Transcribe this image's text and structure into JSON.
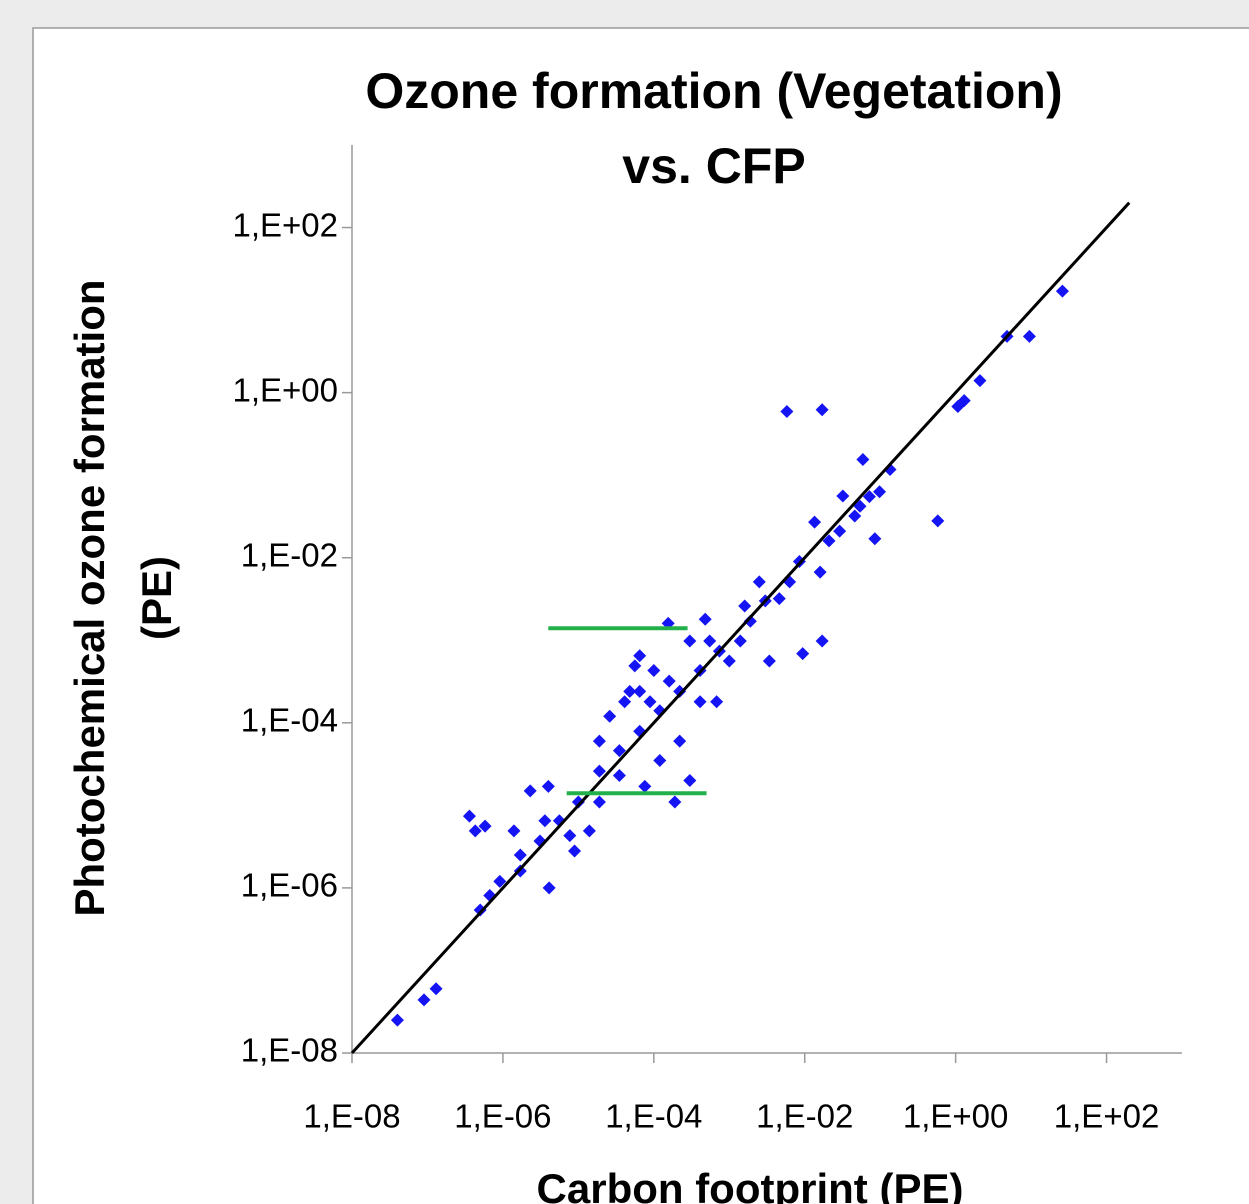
{
  "chart_data": {
    "type": "scatter",
    "title": [
      "Ozone formation (Vegetation)",
      "vs. CFP"
    ],
    "xlabel": "Carbon footprint (PE)",
    "ylabel": [
      "Photochemical ozone formation",
      "(PE)"
    ],
    "xscale": "log",
    "yscale": "log",
    "xlim": [
      1e-08,
      1000.0
    ],
    "ylim": [
      1e-08,
      1000.0
    ],
    "xticks": [
      {
        "value": 1e-08,
        "label": "1,E-08"
      },
      {
        "value": 1e-06,
        "label": "1,E-06"
      },
      {
        "value": 0.0001,
        "label": "1,E-04"
      },
      {
        "value": 0.01,
        "label": "1,E-02"
      },
      {
        "value": 1,
        "label": "1,E+00"
      },
      {
        "value": 100,
        "label": "1,E+02"
      }
    ],
    "yticks": [
      {
        "value": 1e-08,
        "label": "1,E-08"
      },
      {
        "value": 1e-06,
        "label": "1,E-06"
      },
      {
        "value": 0.0001,
        "label": "1,E-04"
      },
      {
        "value": 0.01,
        "label": "1,E-02"
      },
      {
        "value": 1,
        "label": "1,E+00"
      },
      {
        "value": 100,
        "label": "1,E+02"
      }
    ],
    "color": "#1414f5",
    "x": [
      4e-08,
      9e-08,
      1.3e-07,
      26,
      4.8,
      9.5,
      2.1,
      1.3,
      1.07,
      0.0058,
      0.017,
      0.059,
      0.135,
      0.58,
      0.085,
      0.032,
      0.017,
      0.0094,
      0.0034,
      4.1e-06,
      3.6e-07,
      4.3e-07,
      5.8e-07,
      0.000155,
      6.5e-05,
      0.00048,
      0.00068,
      0.0003,
      1.9e-05,
      4e-06,
      8.9e-06,
      1.7e-06,
      0.0025,
      0.0046,
      0.0085,
      0.016,
      0.0135,
      0.029,
      0.046,
      0.098,
      0.0016,
      0.0014,
      0.00074,
      0.00041,
      0.00022,
      0.00012,
      6.5e-05,
      3.5e-05,
      1.9e-05,
      1e-05,
      5.6e-06,
      3.1e-06,
      1.7e-06,
      9.1e-07,
      6.7e-07,
      5e-07,
      0.00016,
      8.9e-05,
      4.8e-05,
      0.00012,
      0.00022,
      0.00041,
      2.6e-05,
      3.5e-05,
      7.6e-05,
      0.0003,
      0.00055,
      0.001,
      0.0019,
      0.003,
      0.0063,
      0.021,
      0.054,
      0.072,
      1.9e-05,
      1.4e-05,
      7.7e-06,
      3.6e-06,
      2.3e-06,
      1.4e-06,
      4.1e-05,
      6.5e-05,
      0.0001,
      5.6e-05,
      0.00019
    ],
    "y": [
      2.5e-08,
      4.4e-08,
      6e-08,
      17,
      4.8,
      4.8,
      1.4,
      0.8,
      0.68,
      0.59,
      0.62,
      0.155,
      0.117,
      0.028,
      0.017,
      0.056,
      0.00098,
      0.00069,
      0.00056,
      1e-06,
      7.4e-06,
      4.9e-06,
      5.6e-06,
      0.0016,
      0.00065,
      0.0018,
      0.00018,
      2e-05,
      6e-05,
      1.7e-05,
      2.8e-06,
      1.6e-06,
      0.0051,
      0.0032,
      0.009,
      0.0067,
      0.027,
      0.021,
      0.032,
      0.063,
      0.0026,
      0.00098,
      0.00074,
      0.00043,
      0.00024,
      0.00014,
      7.9e-05,
      4.6e-05,
      2.6e-05,
      1.1e-05,
      6.5e-06,
      3.7e-06,
      2.5e-06,
      1.2e-06,
      8.1e-07,
      5.4e-07,
      0.00032,
      0.00018,
      0.00024,
      3.5e-05,
      6e-05,
      0.00018,
      0.00012,
      2.3e-05,
      1.7e-05,
      0.00098,
      0.00098,
      0.00056,
      0.0017,
      0.003,
      0.0051,
      0.016,
      0.042,
      0.055,
      1.1e-05,
      4.9e-06,
      4.3e-06,
      6.5e-06,
      1.5e-05,
      4.9e-06,
      0.00018,
      0.00024,
      0.00043,
      0.00049,
      1.1e-05
    ],
    "fit_line": {
      "color": "#000000",
      "x": [
        1e-08,
        200
      ],
      "y": [
        1e-08,
        200
      ]
    },
    "reference_lines": [
      {
        "color": "#22b04a",
        "x": [
          4e-06,
          0.00028
        ],
        "y": 0.0014
      },
      {
        "color": "#22b04a",
        "x": [
          7e-06,
          0.0005
        ],
        "y": 1.4e-05
      }
    ]
  }
}
